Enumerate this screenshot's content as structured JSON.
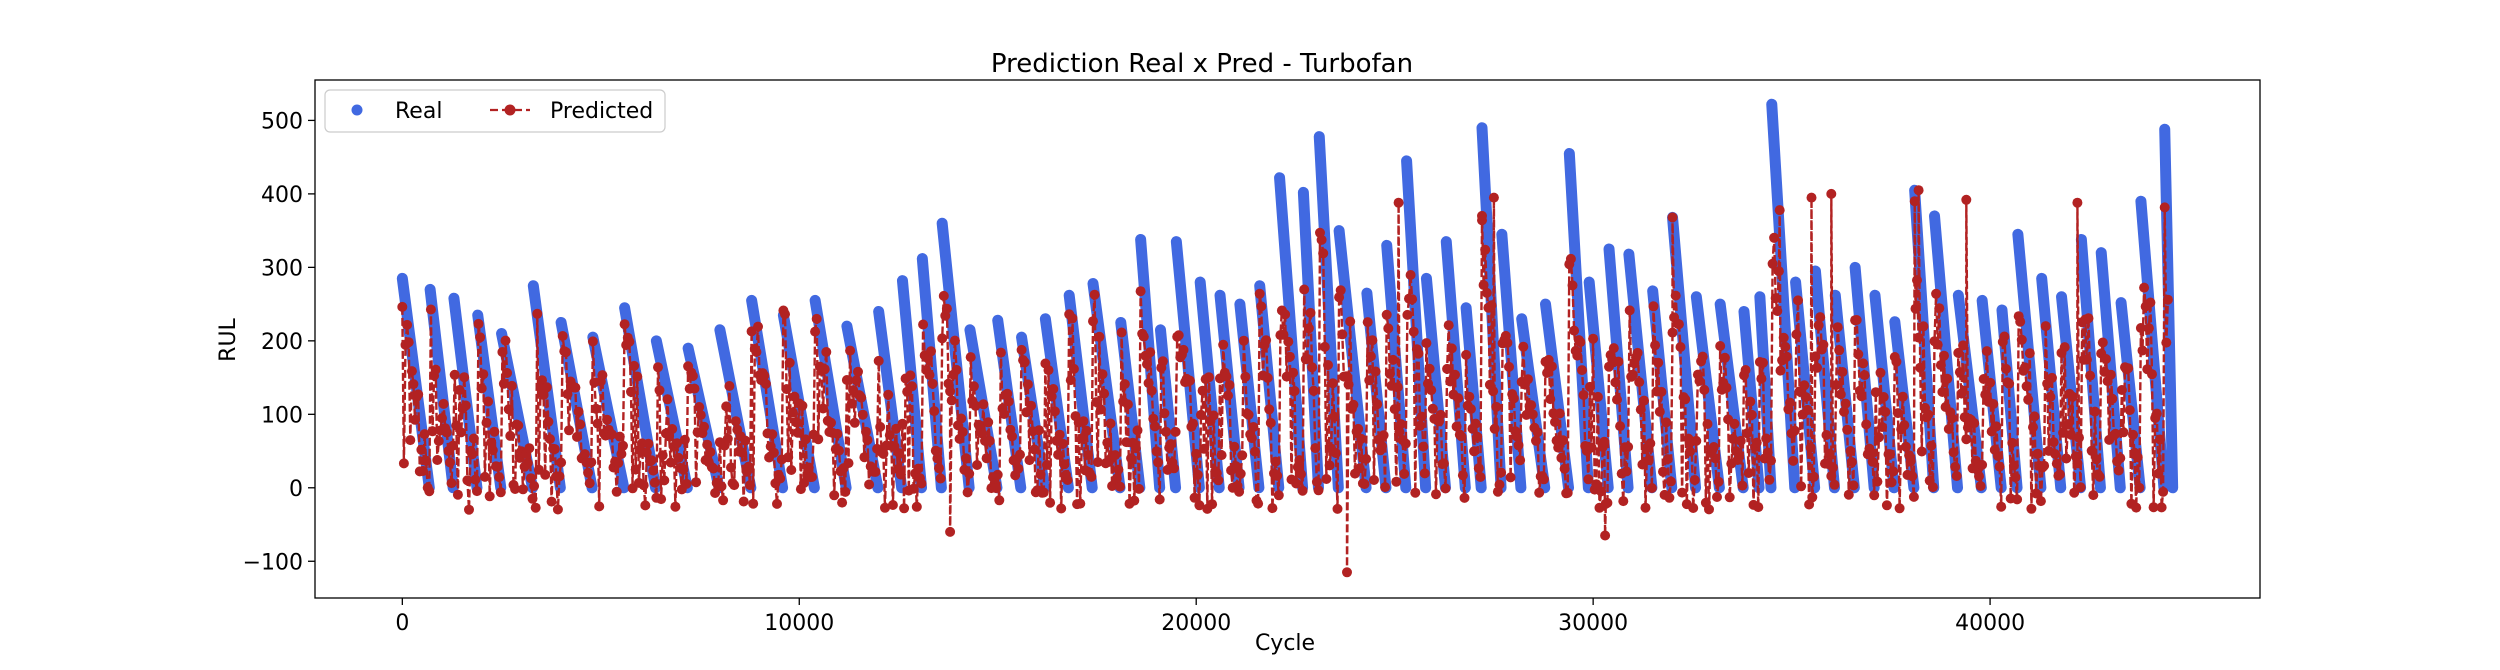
{
  "chart_data": {
    "type": "line",
    "title": "Prediction Real x Pred - Turbofan",
    "xlabel": "Cycle",
    "ylabel": "RUL",
    "xlim": [
      -2200,
      46800
    ],
    "ylim": [
      -150,
      555
    ],
    "xticks": [
      0,
      10000,
      20000,
      30000,
      40000
    ],
    "xtick_labels": [
      "0",
      "10000",
      "20000",
      "30000",
      "40000"
    ],
    "yticks": [
      -100,
      0,
      100,
      200,
      300,
      400,
      500
    ],
    "ytick_labels": [
      "−100",
      "0",
      "100",
      "200",
      "300",
      "400",
      "500"
    ],
    "grid": false,
    "legend_position": "top-left",
    "series": [
      {
        "name": "Real",
        "style": "markers",
        "color": "#4169e1",
        "peaks": [
          [
            0,
            285
          ],
          [
            700,
            270
          ],
          [
            1300,
            258
          ],
          [
            1900,
            235
          ],
          [
            2500,
            210
          ],
          [
            3300,
            275
          ],
          [
            4000,
            225
          ],
          [
            4800,
            205
          ],
          [
            5600,
            245
          ],
          [
            6400,
            200
          ],
          [
            7200,
            190
          ],
          [
            8000,
            215
          ],
          [
            8800,
            255
          ],
          [
            9600,
            235
          ],
          [
            10400,
            255
          ],
          [
            11200,
            220
          ],
          [
            12000,
            240
          ],
          [
            12600,
            282
          ],
          [
            13100,
            312
          ],
          [
            13600,
            360
          ],
          [
            14300,
            215
          ],
          [
            15000,
            228
          ],
          [
            15600,
            205
          ],
          [
            16200,
            230
          ],
          [
            16800,
            262
          ],
          [
            17400,
            278
          ],
          [
            18100,
            225
          ],
          [
            18600,
            338
          ],
          [
            19100,
            215
          ],
          [
            19500,
            335
          ],
          [
            20100,
            280
          ],
          [
            20600,
            262
          ],
          [
            21100,
            250
          ],
          [
            21600,
            275
          ],
          [
            22100,
            422
          ],
          [
            22700,
            402
          ],
          [
            23100,
            478
          ],
          [
            23600,
            350
          ],
          [
            24300,
            265
          ],
          [
            24800,
            330
          ],
          [
            25300,
            445
          ],
          [
            25800,
            285
          ],
          [
            26300,
            335
          ],
          [
            26800,
            245
          ],
          [
            27200,
            490
          ],
          [
            27700,
            345
          ],
          [
            28200,
            230
          ],
          [
            28800,
            250
          ],
          [
            29400,
            455
          ],
          [
            29900,
            280
          ],
          [
            30400,
            325
          ],
          [
            30900,
            318
          ],
          [
            31500,
            268
          ],
          [
            32000,
            368
          ],
          [
            32600,
            260
          ],
          [
            33200,
            250
          ],
          [
            33800,
            240
          ],
          [
            34200,
            260
          ],
          [
            34500,
            522
          ],
          [
            35100,
            280
          ],
          [
            35600,
            295
          ],
          [
            36100,
            262
          ],
          [
            36600,
            300
          ],
          [
            37100,
            262
          ],
          [
            37600,
            226
          ],
          [
            38100,
            405
          ],
          [
            38600,
            370
          ],
          [
            39200,
            262
          ],
          [
            39800,
            255
          ],
          [
            40300,
            242
          ],
          [
            40700,
            345
          ],
          [
            41300,
            285
          ],
          [
            41800,
            260
          ],
          [
            42300,
            338
          ],
          [
            42800,
            320
          ],
          [
            43300,
            252
          ],
          [
            43800,
            390
          ],
          [
            44400,
            488
          ]
        ]
      },
      {
        "name": "Predicted",
        "style": "line-markers",
        "color": "#b22222",
        "seed": 7,
        "step": 40,
        "x_max": 44500,
        "typical_range": [
          -30,
          250
        ],
        "notable_points": [
          [
            23800,
            -115
          ],
          [
            13800,
            -60
          ],
          [
            30300,
            -65
          ],
          [
            27500,
            395
          ],
          [
            35500,
            395
          ],
          [
            36000,
            400
          ],
          [
            38100,
            390
          ],
          [
            39400,
            392
          ],
          [
            34700,
            378
          ],
          [
            25100,
            388
          ],
          [
            42200,
            388
          ],
          [
            27200,
            370
          ],
          [
            32000,
            368
          ],
          [
            38200,
            405
          ]
        ]
      }
    ]
  }
}
